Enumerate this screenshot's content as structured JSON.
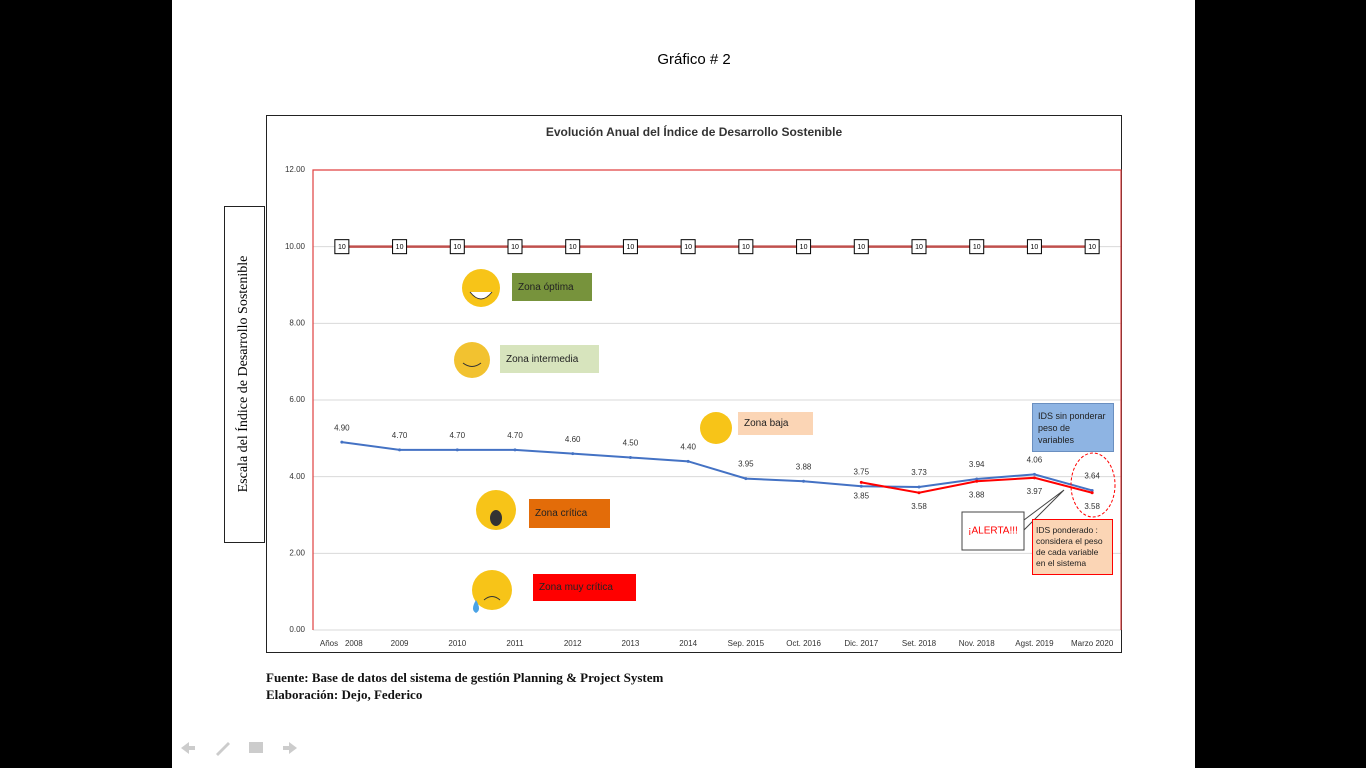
{
  "page_title": "Gráfico # 2",
  "chart_data": {
    "type": "line",
    "title": "Evolución Anual del Índice de Desarrollo Sostenible",
    "y_label": "Escala del Índice de Desarrollo Sostenible",
    "x_label": "Años",
    "categories": [
      "2008",
      "2009",
      "2010",
      "2011",
      "2012",
      "2013",
      "2014",
      "Sep. 2015",
      "Oct. 2016",
      "Dic. 2017",
      "Set. 2018",
      "Nov. 2018",
      "Agst. 2019",
      "Marzo 2020"
    ],
    "ylim": [
      0,
      12
    ],
    "yticks": [
      {
        "value": 0,
        "label": "0.00"
      },
      {
        "value": 2,
        "label": "2.00"
      },
      {
        "value": 4,
        "label": "4.00"
      },
      {
        "value": 6,
        "label": "6.00"
      },
      {
        "value": 8,
        "label": "8.00"
      },
      {
        "value": 10,
        "label": "10.00"
      },
      {
        "value": 12,
        "label": "12.00"
      }
    ],
    "grid": true,
    "series": [
      {
        "color": "#c0504d",
        "values": [
          10,
          10,
          10,
          10,
          10,
          10,
          10,
          10,
          10,
          10,
          10,
          10,
          10,
          10
        ]
      },
      {
        "name": "IDS sin ponderar peso de variables",
        "color": "#4472c4",
        "values": [
          4.9,
          4.7,
          4.7,
          4.7,
          4.6,
          4.5,
          4.4,
          3.95,
          3.88,
          3.75,
          3.73,
          3.94,
          4.06,
          3.64
        ],
        "value_labels": [
          "4.90",
          "4.70",
          "4.70",
          "4.70",
          "4.60",
          "4.50",
          "4.40",
          "3.95",
          "3.88",
          "3.75",
          "3.73",
          "3.94",
          "4.06",
          "3.64"
        ]
      },
      {
        "name": "IDS ponderado : considera el peso de cada variable en el sistema",
        "color": "#ff0000",
        "values": [
          null,
          null,
          null,
          null,
          null,
          null,
          null,
          null,
          null,
          3.85,
          3.58,
          3.88,
          3.97,
          3.58
        ],
        "value_labels": [
          null,
          null,
          null,
          null,
          null,
          null,
          null,
          null,
          null,
          "3.85",
          "3.58",
          "3.88",
          "3.97",
          "3.58"
        ]
      }
    ],
    "annotations": [
      "Zona óptima",
      "Zona intermedia",
      "Zona baja",
      "Zona crítica",
      "Zona muy crítica",
      "¡ALERTA!!!"
    ]
  },
  "source": [
    "Fuente: Base de datos del sistema de gestión Planning & Project System",
    "Elaboración: Dejo, Federico"
  ]
}
